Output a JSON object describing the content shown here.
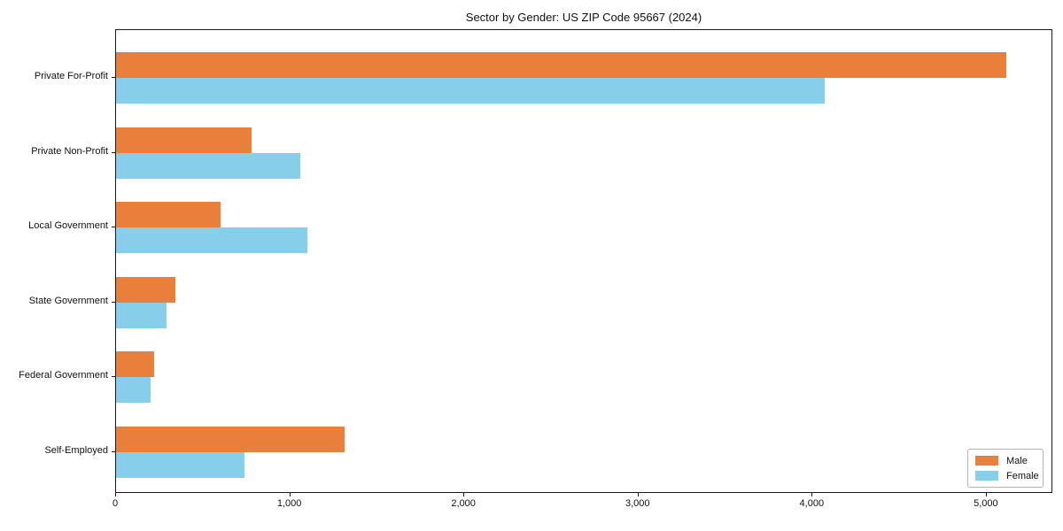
{
  "chart_data": {
    "type": "bar",
    "orientation": "horizontal",
    "title": "Sector by Gender: US ZIP Code 95667 (2024)",
    "categories": [
      "Private For-Profit",
      "Private Non-Profit",
      "Local Government",
      "State Government",
      "Federal Government",
      "Self-Employed"
    ],
    "series": [
      {
        "name": "Male",
        "color": "#E8803C",
        "values": [
          5110,
          780,
          600,
          340,
          220,
          1310
        ]
      },
      {
        "name": "Female",
        "color": "#87CEEB",
        "values": [
          4070,
          1060,
          1100,
          290,
          200,
          740
        ]
      }
    ],
    "xlabel": "",
    "ylabel": "",
    "xlim": [
      0,
      5382
    ],
    "xticks": [
      0,
      1000,
      2000,
      3000,
      4000,
      5000
    ],
    "xtick_labels": [
      "0",
      "1,000",
      "2,000",
      "3,000",
      "4,000",
      "5,000"
    ],
    "legend_position": "lower right",
    "grid": false,
    "frame": true
  }
}
